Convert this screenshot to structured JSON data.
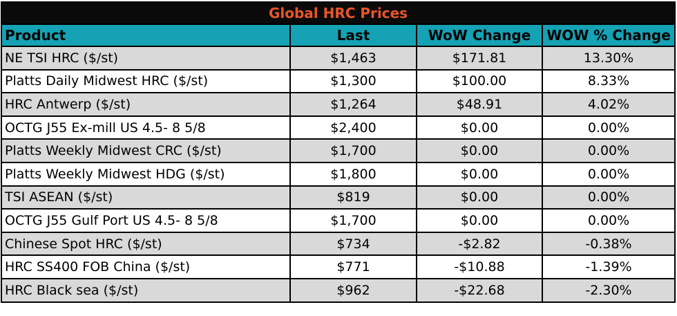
{
  "title": "Global HRC Prices",
  "columns": [
    "Product",
    "Last",
    "WoW Change",
    "WOW % Change"
  ],
  "rows": [
    {
      "product": "NE TSI HRC ($/st)",
      "last": "$1,463",
      "wow_change": "$171.81",
      "wow_pct": "13.30%"
    },
    {
      "product": "Platts Daily Midwest HRC ($/st)",
      "last": "$1,300",
      "wow_change": "$100.00",
      "wow_pct": "8.33%"
    },
    {
      "product": "HRC Antwerp ($/st)",
      "last": "$1,264",
      "wow_change": "$48.91",
      "wow_pct": "4.02%"
    },
    {
      "product": "OCTG J55 Ex-mill US 4.5- 8 5/8",
      "last": "$2,400",
      "wow_change": "$0.00",
      "wow_pct": "0.00%"
    },
    {
      "product": "Platts Weekly Midwest CRC ($/st)",
      "last": "$1,700",
      "wow_change": "$0.00",
      "wow_pct": "0.00%"
    },
    {
      "product": "Platts Weekly Midwest HDG ($/st)",
      "last": "$1,800",
      "wow_change": "$0.00",
      "wow_pct": "0.00%"
    },
    {
      "product": "TSI ASEAN ($/st)",
      "last": "$819",
      "wow_change": "$0.00",
      "wow_pct": "0.00%"
    },
    {
      "product": "OCTG J55 Gulf Port US 4.5- 8 5/8",
      "last": "$1,700",
      "wow_change": "$0.00",
      "wow_pct": "0.00%"
    },
    {
      "product": "Chinese Spot HRC ($/st)",
      "last": "$734",
      "wow_change": "-$2.82",
      "wow_pct": "-0.38%"
    },
    {
      "product": "HRC SS400 FOB China ($/st)",
      "last": "$771",
      "wow_change": "-$10.88",
      "wow_pct": "-1.39%"
    },
    {
      "product": "HRC Black sea ($/st)",
      "last": "$962",
      "wow_change": "-$22.68",
      "wow_pct": "-2.30%"
    }
  ],
  "colors": {
    "title_background": "#0a0a0a",
    "title_text": "#e8552b",
    "header_background": "#14a2b4",
    "stripe_background": "#d9d9d9",
    "row_background": "#ffffff"
  }
}
